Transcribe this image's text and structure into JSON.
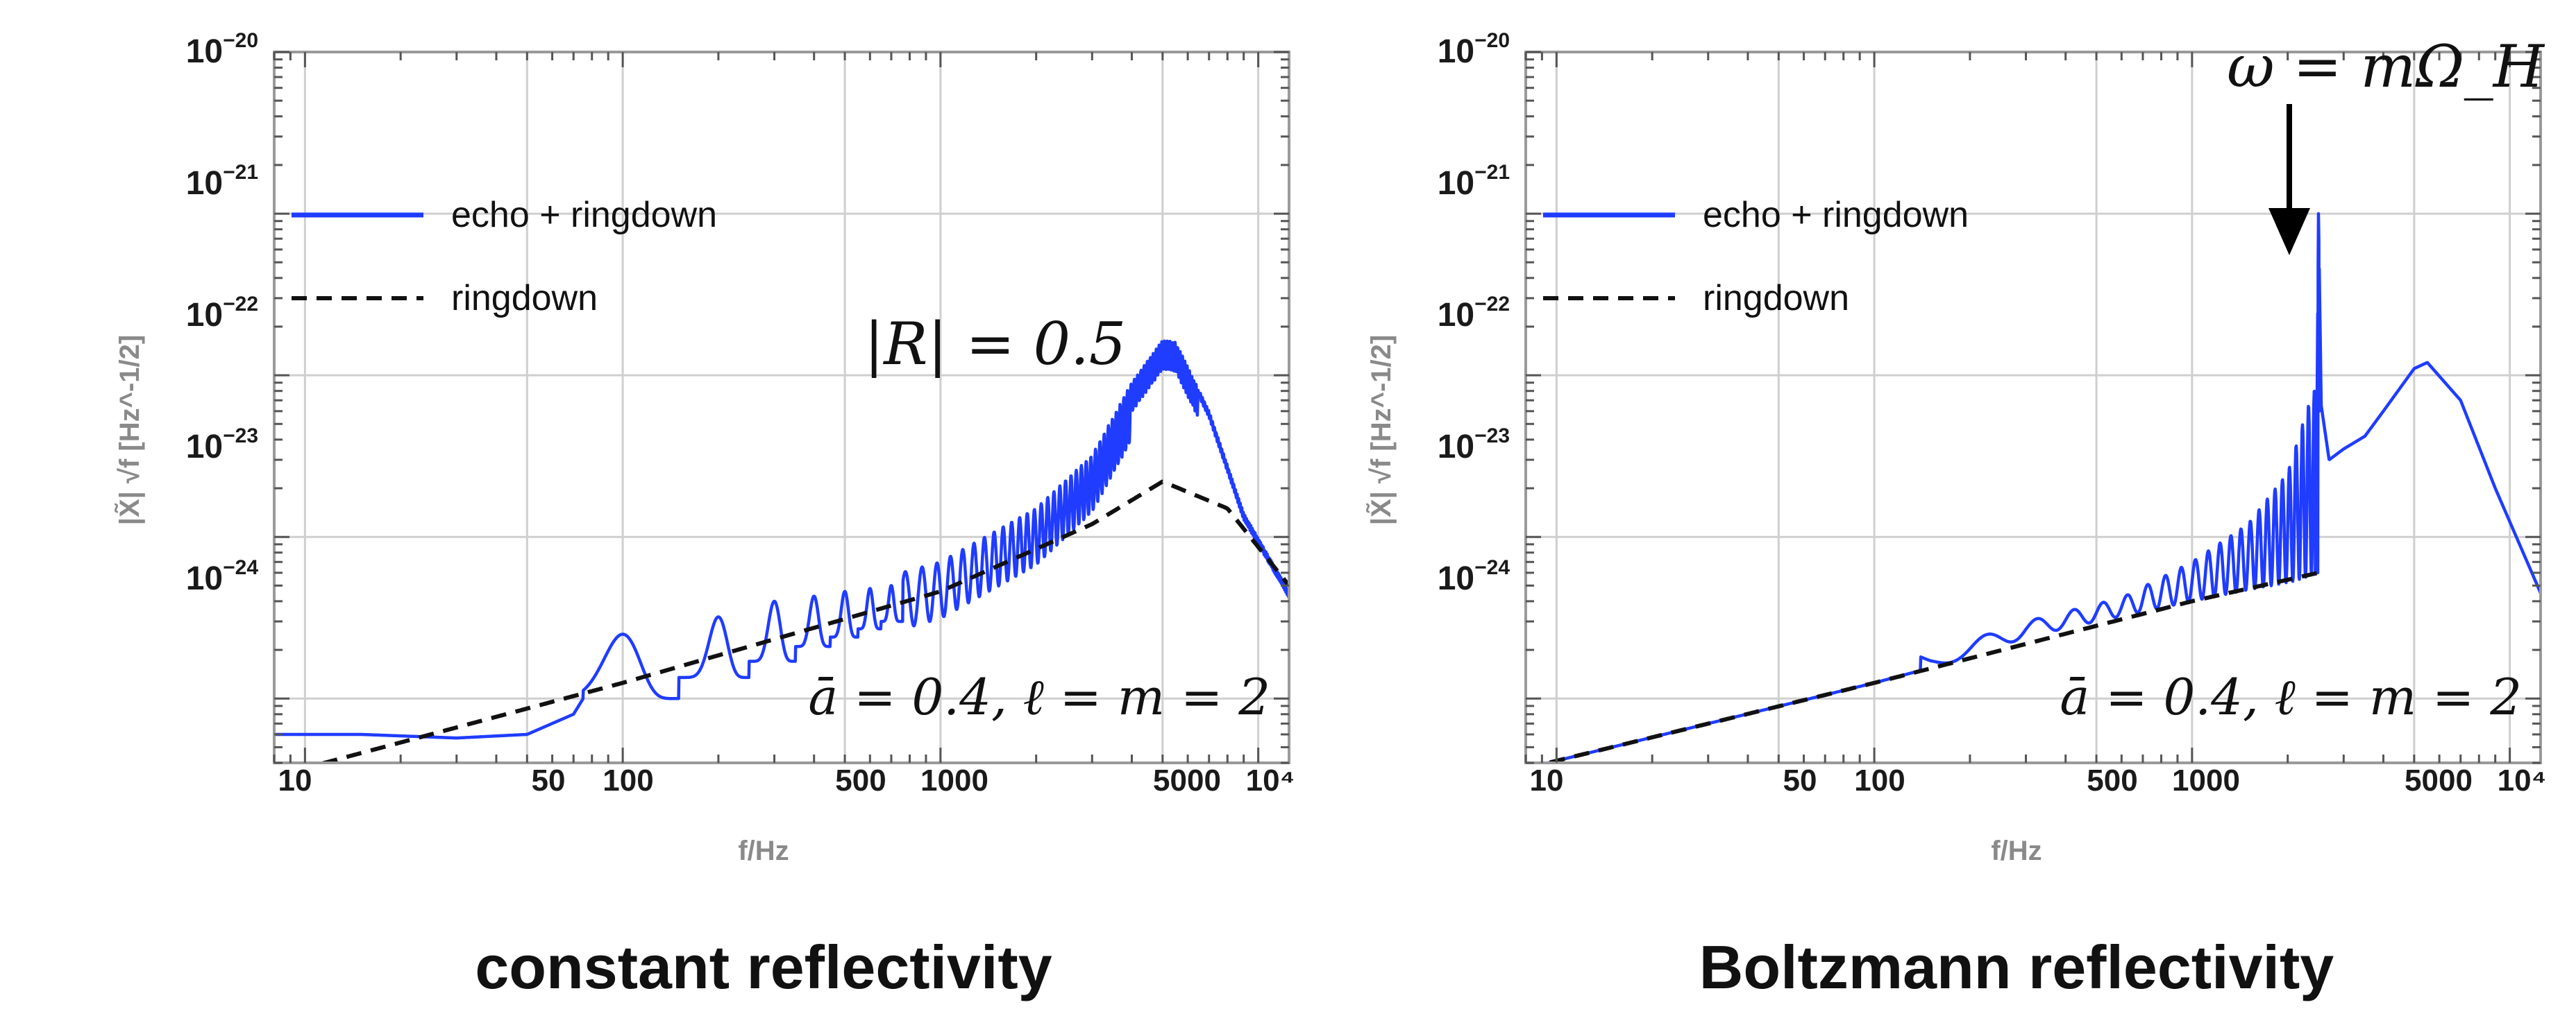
{
  "colors": {
    "echo": "#1f3cff",
    "ringdown": "#111111",
    "grid": "#cfcfcf",
    "frame": "#9a9a9a",
    "axis_label": "#8a8a8a"
  },
  "chart_data": [
    {
      "type": "line",
      "caption": "constant reflectivity",
      "xlabel": "f/Hz",
      "ylabel": "|X̃| √f [Hz^-1/2]",
      "x_scale": "log",
      "y_scale": "log",
      "xlim": [
        8,
        12500
      ],
      "ylim": [
        4e-25,
        1e-20
      ],
      "x_ticks": [
        {
          "v": 10,
          "label": "10"
        },
        {
          "v": 50,
          "label": "50"
        },
        {
          "v": 100,
          "label": "100"
        },
        {
          "v": 500,
          "label": "500"
        },
        {
          "v": 1000,
          "label": "1000"
        },
        {
          "v": 5000,
          "label": "5000"
        },
        {
          "v": 10000,
          "label": "10⁴"
        }
      ],
      "y_ticks": [
        {
          "v": 1e-20,
          "base": "10",
          "exp": "−20"
        },
        {
          "v": 1e-21,
          "base": "10",
          "exp": "−21"
        },
        {
          "v": 1e-22,
          "base": "10",
          "exp": "−22"
        },
        {
          "v": 1e-23,
          "base": "10",
          "exp": "−23"
        },
        {
          "v": 1e-24,
          "base": "10",
          "exp": "−24"
        }
      ],
      "legend": {
        "position": "top-left",
        "entries": [
          {
            "name": "echo + ringdown",
            "style": "solid",
            "color": "#1f3cff"
          },
          {
            "name": "ringdown",
            "style": "dashed",
            "color": "#111111"
          }
        ]
      },
      "annotations": [
        {
          "text": "|R| = 0.5",
          "anchor": "upper-middle"
        },
        {
          "text": "ā = 0.4,  ℓ = m = 2",
          "anchor": "lower-right"
        }
      ],
      "series": [
        {
          "name": "ringdown",
          "style": "dashed",
          "x": [
            8,
            100,
            1000,
            3000,
            5000,
            8000,
            12500
          ],
          "y": [
            3.3e-25,
            1.25e-24,
            4.6e-24,
            1.2e-23,
            2.2e-23,
            1.5e-23,
            5e-24
          ]
        },
        {
          "name": "echo + ringdown",
          "style": "solid",
          "envelope_x": [
            8,
            15,
            30,
            50,
            70,
            100,
            150,
            250,
            500,
            1000,
            2000,
            3000,
            4000,
            5000,
            5500,
            7000,
            9000,
            12500
          ],
          "envelope_y": [
            6e-25,
            6e-25,
            5.7e-25,
            6e-25,
            8e-25,
            2.5e-24,
            3e-24,
            4e-24,
            4.8e-24,
            7e-24,
            1.5e-23,
            3.2e-23,
            9e-23,
            1.65e-22,
            1.6e-22,
            6e-23,
            1.4e-23,
            4.6e-24
          ],
          "peaks_x": [
            100,
            200,
            300,
            400,
            500,
            600,
            700
          ],
          "peak_y": [
            2.5e-24,
            3.2e-24,
            4e-24,
            4.3e-24,
            4.6e-24,
            4.8e-24,
            5e-24
          ],
          "trough_y": [
            1e-24,
            1.35e-24,
            1.7e-24,
            2.1e-24,
            2.4e-24,
            2.7e-24,
            3e-24
          ]
        }
      ]
    },
    {
      "type": "line",
      "caption": "Boltzmann reflectivity",
      "xlabel": "f/Hz",
      "ylabel": "|X̃| √f [Hz^-1/2]",
      "x_scale": "log",
      "y_scale": "log",
      "xlim": [
        8,
        12500
      ],
      "ylim": [
        4e-25,
        1e-20
      ],
      "x_ticks": [
        {
          "v": 10,
          "label": "10"
        },
        {
          "v": 50,
          "label": "50"
        },
        {
          "v": 100,
          "label": "100"
        },
        {
          "v": 500,
          "label": "500"
        },
        {
          "v": 1000,
          "label": "1000"
        },
        {
          "v": 5000,
          "label": "5000"
        },
        {
          "v": 10000,
          "label": "10⁴"
        }
      ],
      "y_ticks": [
        {
          "v": 1e-20,
          "base": "10",
          "exp": "−20"
        },
        {
          "v": 1e-21,
          "base": "10",
          "exp": "−21"
        },
        {
          "v": 1e-22,
          "base": "10",
          "exp": "−22"
        },
        {
          "v": 1e-23,
          "base": "10",
          "exp": "−23"
        },
        {
          "v": 1e-24,
          "base": "10",
          "exp": "−24"
        }
      ],
      "legend": {
        "position": "top-left",
        "entries": [
          {
            "name": "echo + ringdown",
            "style": "solid",
            "color": "#1f3cff"
          },
          {
            "name": "ringdown",
            "style": "dashed",
            "color": "#111111"
          }
        ]
      },
      "annotations": [
        {
          "text": "ω = mΩ_H",
          "anchor": "top",
          "arrow_to_x": 2500,
          "arrow_to_y": 1e-21
        },
        {
          "text": "ā = 0.4,  ℓ = m = 2",
          "anchor": "lower-right"
        }
      ],
      "series": [
        {
          "name": "ringdown",
          "style": "dashed",
          "x": [
            8,
            100,
            1000,
            2500
          ],
          "y": [
            3.7e-25,
            1.25e-24,
            4e-24,
            6e-24
          ]
        },
        {
          "name": "echo + ringdown",
          "style": "solid",
          "x": [
            8,
            30,
            100,
            200,
            300,
            500,
            1000,
            1500,
            2000,
            2300,
            2450,
            2500,
            2550,
            2700,
            3000,
            3500,
            4000,
            5000,
            5500,
            7000,
            9000,
            12500
          ],
          "y": [
            3.7e-25,
            7e-25,
            1.25e-24,
            1.8e-24,
            2.4e-24,
            3e-24,
            4e-24,
            4.7e-24,
            5.2e-24,
            5.6e-24,
            6e-24,
            1e-21,
            6.5e-23,
            3e-23,
            3.5e-23,
            4.2e-23,
            6e-23,
            1.1e-22,
            1.2e-22,
            7e-23,
            2e-23,
            4.5e-24
          ],
          "oscillation_upper_x": [
            150,
            300,
            600,
            1000,
            1500,
            2000,
            2400
          ],
          "oscillation_upper_y": [
            1.9e-24,
            3e-24,
            4.2e-24,
            7e-24,
            1.2e-23,
            2.5e-23,
            8e-23
          ]
        }
      ]
    }
  ]
}
